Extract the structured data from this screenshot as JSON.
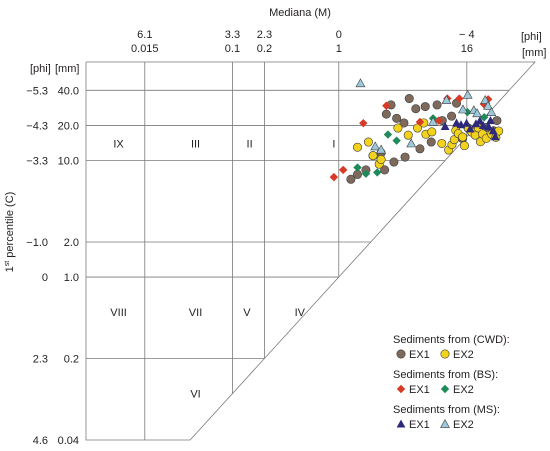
{
  "chart_data": {
    "type": "scatter",
    "title": "",
    "xlabel": "Mediana (M)",
    "ylabel_main": "1",
    "ylabel_sup": "st",
    "ylabel_rest": " percentile (C)",
    "x_scale": "log",
    "y_scale": "log",
    "x_unit_labels": [
      "[phi]",
      "[mm]"
    ],
    "y_unit_labels": [
      "[phi]",
      "[mm]"
    ],
    "xlim_mm": [
      0.0042,
      70
    ],
    "ylim_mm": [
      0.04,
      70
    ],
    "x_ticks": [
      {
        "mm": 0.015,
        "phi": "6.1",
        "mm_label": "0.015"
      },
      {
        "mm": 0.1,
        "phi": "3.3",
        "mm_label": "0.1"
      },
      {
        "mm": 0.2,
        "phi": "2.3",
        "mm_label": "0.2"
      },
      {
        "mm": 1,
        "phi": "0",
        "mm_label": "1"
      },
      {
        "mm": 16,
        "phi": "− 4",
        "mm_label": "16"
      }
    ],
    "y_ticks": [
      {
        "mm": 40,
        "phi": "−5.3",
        "mm_label": "40.0"
      },
      {
        "mm": 20,
        "phi": "−4.3",
        "mm_label": "20.0"
      },
      {
        "mm": 10,
        "phi": "−3.3",
        "mm_label": "10.0"
      },
      {
        "mm": 2,
        "phi": "−1.0",
        "mm_label": "2.0"
      },
      {
        "mm": 1,
        "phi": "0",
        "mm_label": "1.0"
      },
      {
        "mm": 0.2,
        "phi": "2.3",
        "mm_label": "0.2"
      },
      {
        "mm": 0.04,
        "phi": "4.6",
        "mm_label": "0.04"
      }
    ],
    "fields": [
      {
        "label": "IX",
        "x_mm": 0.0085,
        "y_mm": 14
      },
      {
        "label": "III",
        "x_mm": 0.045,
        "y_mm": 14
      },
      {
        "label": "II",
        "x_mm": 0.145,
        "y_mm": 14
      },
      {
        "label": "I",
        "x_mm": 0.9,
        "y_mm": 14
      },
      {
        "label": "VIII",
        "x_mm": 0.0085,
        "y_mm": 0.5
      },
      {
        "label": "VII",
        "x_mm": 0.045,
        "y_mm": 0.5
      },
      {
        "label": "V",
        "x_mm": 0.137,
        "y_mm": 0.5
      },
      {
        "label": "IV",
        "x_mm": 0.43,
        "y_mm": 0.5
      },
      {
        "label": "VI",
        "x_mm": 0.045,
        "y_mm": 0.1
      }
    ],
    "legend_groups": [
      {
        "heading": "Sediments from (CWD):",
        "items": [
          {
            "label": "EX1",
            "series": 0
          },
          {
            "label": "EX2",
            "series": 1
          }
        ]
      },
      {
        "heading": "Sediments from (BS):",
        "items": [
          {
            "label": "EX1",
            "series": 2
          },
          {
            "label": "EX2",
            "series": 3
          }
        ]
      },
      {
        "heading": "Sediments from (MS):",
        "items": [
          {
            "label": "EX1",
            "series": 4
          },
          {
            "label": "EX2",
            "series": 5
          }
        ]
      }
    ],
    "series": [
      {
        "name": "EX1",
        "group": "CWD",
        "marker": "circle",
        "color": "#7d6a5c",
        "points": [
          [
            1.3,
            6.9
          ],
          [
            1.5,
            7.6
          ],
          [
            1.8,
            8.3
          ],
          [
            2.1,
            11
          ],
          [
            2.5,
            11.6
          ],
          [
            2.7,
            8.3
          ],
          [
            3.3,
            9.7
          ],
          [
            4.2,
            10.7
          ],
          [
            5.8,
            12.6
          ],
          [
            7.4,
            14.4
          ],
          [
            2.8,
            25
          ],
          [
            3.5,
            23
          ],
          [
            4.1,
            21
          ],
          [
            4.6,
            34
          ],
          [
            3.1,
            30
          ],
          [
            5.3,
            27.8
          ],
          [
            6.5,
            29
          ],
          [
            8.4,
            30
          ],
          [
            9.4,
            22
          ],
          [
            11.5,
            24
          ],
          [
            12.8,
            31
          ],
          [
            14.6,
            15.4
          ],
          [
            16.4,
            19
          ],
          [
            18.2,
            18.2
          ],
          [
            20.9,
            20
          ],
          [
            24.5,
            19.2
          ],
          [
            28.5,
            18
          ],
          [
            30.7,
            22
          ]
        ]
      },
      {
        "name": "EX2",
        "group": "CWD",
        "marker": "circle",
        "color": "#f2d21b",
        "points": [
          [
            1.5,
            13
          ],
          [
            1.9,
            14.4
          ],
          [
            2.1,
            11
          ],
          [
            2.4,
            9.3
          ],
          [
            2.5,
            10.2
          ],
          [
            3.6,
            19
          ],
          [
            4.5,
            16.5
          ],
          [
            5.5,
            19
          ],
          [
            6.3,
            21
          ],
          [
            6.6,
            16.8
          ],
          [
            7.5,
            17.6
          ],
          [
            9.3,
            14
          ],
          [
            10.8,
            12.3
          ],
          [
            11.6,
            13.7
          ],
          [
            12.2,
            15.1
          ],
          [
            12.6,
            18.1
          ],
          [
            13.3,
            17
          ],
          [
            14.6,
            15.9
          ],
          [
            15.2,
            13.4
          ],
          [
            16.5,
            19
          ],
          [
            17.8,
            17.5
          ],
          [
            19.2,
            16.5
          ],
          [
            20.6,
            19
          ],
          [
            21.5,
            14.5
          ],
          [
            22.5,
            16.9
          ],
          [
            24.4,
            15.5
          ],
          [
            27.4,
            16.8
          ],
          [
            30,
            15.8
          ],
          [
            31.9,
            17.9
          ]
        ]
      },
      {
        "name": "EX1",
        "group": "BS",
        "marker": "diamond",
        "color": "#d93a26",
        "points": [
          [
            0.9,
            7.2
          ],
          [
            1.1,
            8.3
          ],
          [
            1.7,
            20.9
          ],
          [
            2.8,
            29.5
          ],
          [
            5.8,
            21.4
          ],
          [
            8.7,
            22
          ],
          [
            10.5,
            34
          ],
          [
            13.6,
            34
          ],
          [
            23.1,
            30.5
          ],
          [
            25.4,
            33.5
          ]
        ]
      },
      {
        "name": "EX2",
        "group": "BS",
        "marker": "diamond",
        "color": "#1f8a5a",
        "points": [
          [
            1.5,
            8.7
          ],
          [
            1.8,
            7.7
          ],
          [
            2.3,
            7.9
          ],
          [
            2.9,
            16.7
          ],
          [
            3.5,
            14.8
          ],
          [
            7.7,
            23
          ],
          [
            16.2,
            26
          ],
          [
            23.3,
            23.5
          ]
        ]
      },
      {
        "name": "EX1",
        "group": "MS",
        "marker": "triangle",
        "color": "#2d2a7c",
        "points": [
          [
            10,
            19.6
          ],
          [
            12.8,
            21
          ],
          [
            14.1,
            20.3
          ],
          [
            15.9,
            20.9
          ],
          [
            17.2,
            18.7
          ],
          [
            19.5,
            20.7
          ],
          [
            21.2,
            21.9
          ],
          [
            22.8,
            20
          ],
          [
            25.5,
            19.5
          ],
          [
            26.7,
            22
          ],
          [
            28.3,
            18
          ],
          [
            29.6,
            16
          ]
        ]
      },
      {
        "name": "EX2",
        "group": "MS",
        "marker": "triangle",
        "color": "#9ec9dc",
        "points": [
          [
            1.6,
            46
          ],
          [
            2.2,
            13.2
          ],
          [
            2.5,
            12.4
          ],
          [
            4.8,
            14
          ],
          [
            7.7,
            21.5
          ],
          [
            10.3,
            33
          ],
          [
            14.7,
            27.4
          ],
          [
            16.3,
            36.6
          ],
          [
            18.6,
            27
          ],
          [
            20,
            25.4
          ],
          [
            23.8,
            33
          ],
          [
            25.3,
            29.5
          ],
          [
            27.2,
            26
          ]
        ]
      }
    ]
  }
}
